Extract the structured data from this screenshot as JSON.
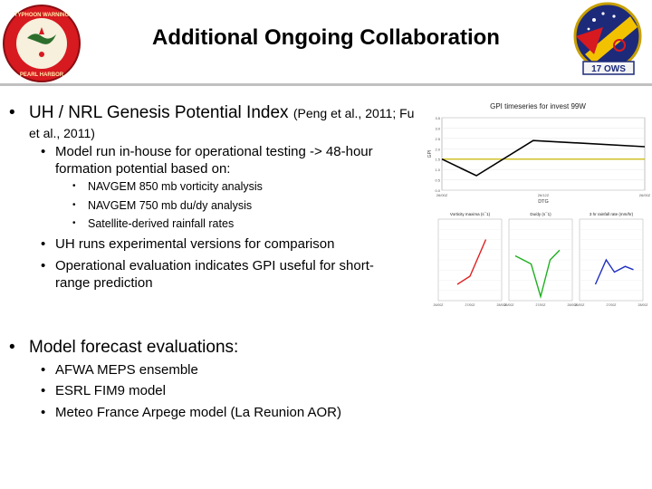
{
  "title": "Additional Ongoing Collaboration",
  "logos": {
    "left_text": "20th TYPHOON WARNING CENTER · PEARL HARBOR",
    "right_text": "17 OWS"
  },
  "bullets": {
    "gpi": {
      "main": "UH / NRL Genesis Potential Index",
      "citation": "(Peng et al., 2011; Fu et al., 2011)"
    },
    "gpi_sub1": "Model run in-house for operational testing -> 48-hour formation potential based on:",
    "gpi_sub1_items": [
      "NAVGEM 850 mb vorticity analysis",
      "NAVGEM 750 mb du/dy analysis",
      "Satellite-derived rainfall rates"
    ],
    "gpi_sub2": "UH runs experimental versions for comparison",
    "gpi_sub3": "Operational evaluation indicates GPI useful for short-range prediction",
    "eval": "Model forecast evaluations:",
    "eval_items": [
      "AFWA MEPS ensemble",
      "ESRL FIM9 model",
      "Meteo France Arpege model (La Reunion AOR)"
    ]
  },
  "chart_data": [
    {
      "type": "line",
      "title": "GPI timeseries for invest 99W",
      "ylabel": "GPI",
      "xlabel": "DTG",
      "ylim": [
        0,
        3.5
      ],
      "yticks": [
        "3.5",
        "3.0",
        "2.5",
        "2.0",
        "1.5",
        "1.0",
        "0.5",
        "0.0"
      ],
      "xticks": [
        "26/00Z",
        "26/12Z",
        "26/00Z"
      ],
      "x": [
        0,
        0.17,
        0.45,
        1
      ],
      "threshold": 1.5,
      "series": [
        {
          "values": [
            1.5,
            0.7,
            2.4,
            2.1
          ]
        }
      ],
      "colors": {
        "line": "#000000",
        "threshold": "#c8b400"
      }
    },
    {
      "type": "line",
      "title": "Vorticity maxima (s¯1)",
      "xticks": [
        "26/00Z",
        "27/00Z",
        "28/00Z"
      ],
      "x": [
        0.3,
        0.5,
        0.75
      ],
      "series": [
        {
          "values": [
            0.2,
            0.3,
            0.75
          ]
        }
      ],
      "colors": {
        "line": "#e02020"
      }
    },
    {
      "type": "line",
      "title": "Du/dy (s¯1)",
      "xticks": [
        "26/00Z",
        "27/00Z",
        "28/00Z"
      ],
      "x": [
        0.1,
        0.35,
        0.5,
        0.65,
        0.8
      ],
      "series": [
        {
          "values": [
            0.55,
            0.45,
            0.05,
            0.5,
            0.62
          ]
        }
      ],
      "colors": {
        "line": "#20b020"
      }
    },
    {
      "type": "line",
      "title": "3 hr rainfall rate (mm/hr)",
      "xticks": [
        "26/00Z",
        "27/00Z",
        "28/00Z"
      ],
      "x": [
        0.25,
        0.42,
        0.55,
        0.72,
        0.85
      ],
      "series": [
        {
          "values": [
            0.2,
            0.5,
            0.35,
            0.42,
            0.38
          ]
        }
      ],
      "colors": {
        "line": "#2030c0"
      }
    }
  ]
}
